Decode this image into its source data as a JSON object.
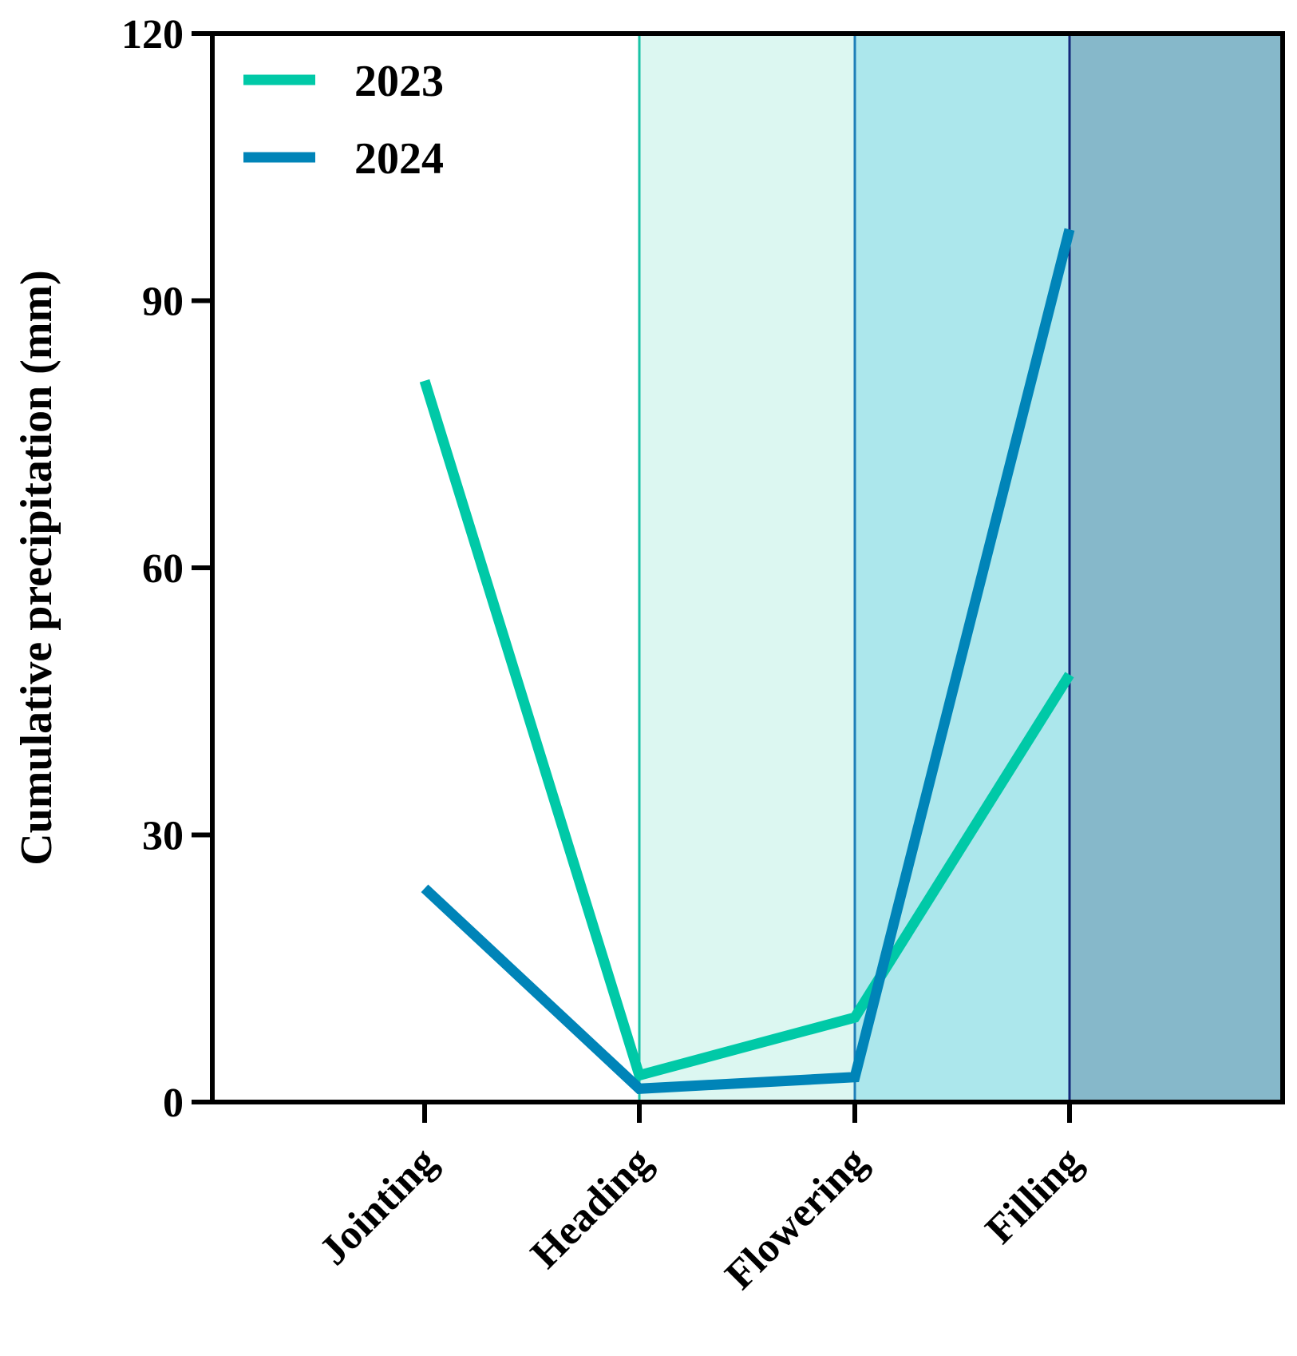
{
  "chart_data": {
    "type": "line",
    "ylabel": "Cumulative precipitation (mm)",
    "xlabel": "",
    "categories": [
      "Jointing",
      "Heading",
      "Flowering",
      "Filling"
    ],
    "ylim": [
      0,
      120
    ],
    "yticks": [
      0,
      30,
      60,
      90,
      120
    ],
    "legend_position": "top-left",
    "series": [
      {
        "name": "2023",
        "color": "#00C9A7",
        "values": [
          81,
          3,
          9.5,
          48
        ]
      },
      {
        "name": "2024",
        "color": "#0084B8",
        "values": [
          24,
          1.5,
          2.8,
          98
        ]
      }
    ],
    "stage_bands": [
      {
        "from_category": "Heading",
        "to_category": "Flowering",
        "color": "#DCF7F1",
        "edge_color": "#19C3A6"
      },
      {
        "from_category": "Flowering",
        "to_category": "Filling",
        "color": "#ACE7EC",
        "edge_color": "#1E7FB8"
      },
      {
        "from_category": "Filling",
        "to_category": "end",
        "color": "#86B8CA",
        "edge_color": "#14287A"
      }
    ]
  }
}
